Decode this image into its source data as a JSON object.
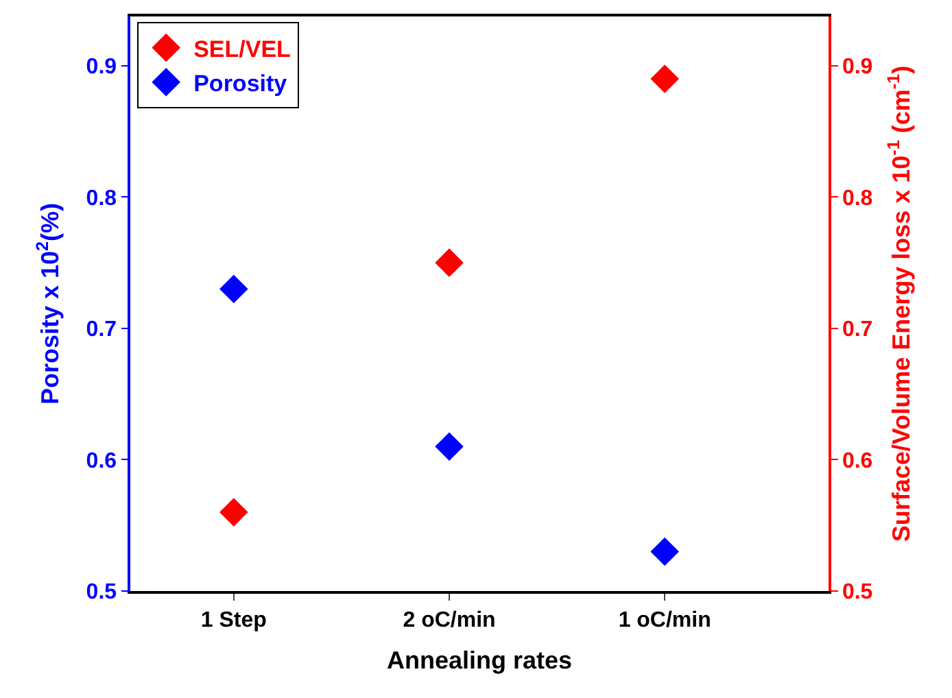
{
  "chart_data": {
    "type": "scatter",
    "xlabel": "Annealing rates",
    "ylabel": "Porosity x 10$^{2}$(%)",
    "y2label": "Surface/Volume Energy loss x 10$^{-1}$ (cm$^{-1}$)",
    "categories": [
      "1 Step",
      "2 oC/min",
      "1 oC/min"
    ],
    "series": [
      {
        "name": "SEL/VEL",
        "color": "#ff0000",
        "axis": "y2",
        "values": [
          0.56,
          0.75,
          0.89
        ]
      },
      {
        "name": "Porosity",
        "color": "#0000ff",
        "values": [
          0.73,
          0.61,
          0.53
        ]
      }
    ],
    "ylim": [
      0.5,
      0.9375
    ],
    "yticks": [
      0.5,
      0.6,
      0.7,
      0.8,
      0.9
    ],
    "y2lim": [
      0.5,
      0.9375
    ],
    "y2ticks": [
      0.5,
      0.6,
      0.7,
      0.8,
      0.9
    ],
    "marker": "diamond",
    "legend": "top left"
  }
}
